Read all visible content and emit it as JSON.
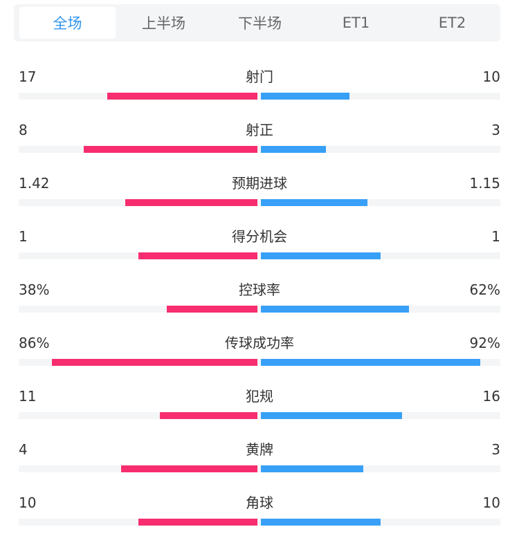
{
  "tabs": [
    {
      "label": "全场",
      "active": true
    },
    {
      "label": "上半场"
    },
    {
      "label": "下半场"
    },
    {
      "label": "ET1"
    },
    {
      "label": "ET2"
    }
  ],
  "colors": {
    "home": "#f72d6f",
    "away": "#38a0f6",
    "active_tab": "#2f95f0"
  },
  "stats": [
    {
      "label": "射门",
      "home": "17",
      "away": "10",
      "home_value": 17,
      "away_value": 10,
      "percent": false
    },
    {
      "label": "射正",
      "home": "8",
      "away": "3",
      "home_value": 8,
      "away_value": 3,
      "percent": false
    },
    {
      "label": "预期进球",
      "home": "1.42",
      "away": "1.15",
      "home_value": 1.42,
      "away_value": 1.15,
      "percent": false
    },
    {
      "label": "得分机会",
      "home": "1",
      "away": "1",
      "home_value": 1,
      "away_value": 1,
      "percent": false
    },
    {
      "label": "控球率",
      "home": "38%",
      "away": "62%",
      "home_value": 38,
      "away_value": 62,
      "percent": true
    },
    {
      "label": "传球成功率",
      "home": "86%",
      "away": "92%",
      "home_value": 86,
      "away_value": 92,
      "percent": true
    },
    {
      "label": "犯规",
      "home": "11",
      "away": "16",
      "home_value": 11,
      "away_value": 16,
      "percent": false
    },
    {
      "label": "黄牌",
      "home": "4",
      "away": "3",
      "home_value": 4,
      "away_value": 3,
      "percent": false
    },
    {
      "label": "角球",
      "home": "10",
      "away": "10",
      "home_value": 10,
      "away_value": 10,
      "percent": false
    }
  ]
}
